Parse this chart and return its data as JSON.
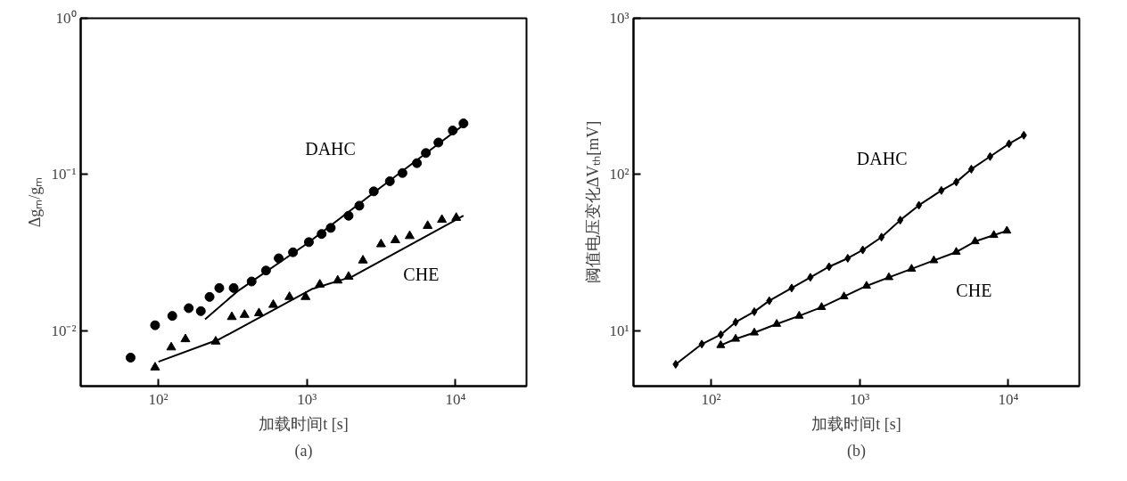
{
  "chart_data": [
    {
      "type": "scatter",
      "log": "xy",
      "xlabel": "加载时间t [s]",
      "ylabel": "Δgₘ/gₘ",
      "annotations": [
        "(a)"
      ],
      "grid": false,
      "xlim": [
        30,
        30000
      ],
      "ylim": [
        0.0044,
        1
      ],
      "xticks": [
        {
          "value": 100,
          "label": "10²"
        },
        {
          "value": 1000,
          "label": "10³"
        },
        {
          "value": 10000,
          "label": "10⁴"
        }
      ],
      "yticks": [
        {
          "value": 0.01,
          "label": "10⁻²"
        },
        {
          "value": 0.1,
          "label": "10⁻¹"
        },
        {
          "value": 1,
          "label": "10⁰"
        }
      ],
      "series": [
        {
          "name": "DAHC",
          "color": "#000000",
          "marker": "circle",
          "x": [
            65,
            95,
            124,
            160,
            193,
            221,
            257,
            321,
            424,
            530,
            645,
            805,
            1030,
            1255,
            1445,
            1905,
            2250,
            2815,
            3610,
            4390,
            5490,
            6310,
            7660,
            9570,
            11300
          ],
          "values": [
            0.0067,
            0.0108,
            0.0124,
            0.0139,
            0.0133,
            0.0164,
            0.0187,
            0.0187,
            0.0206,
            0.0242,
            0.029,
            0.0317,
            0.0368,
            0.0415,
            0.0454,
            0.0543,
            0.063,
            0.0778,
            0.0904,
            0.102,
            0.118,
            0.137,
            0.16,
            0.191,
            0.212
          ]
        },
        {
          "name": "CHE",
          "color": "#000000",
          "marker": "triangle",
          "x": [
            95,
            122,
            152,
            243,
            312,
            380,
            475,
            593,
            762,
            978,
            1220,
            1610,
            1905,
            2380,
            3150,
            3930,
            4910,
            6490,
            8090,
            10100
          ],
          "values": [
            0.0058,
            0.0078,
            0.0088,
            0.0085,
            0.0122,
            0.0126,
            0.0129,
            0.0146,
            0.0164,
            0.0164,
            0.0197,
            0.0209,
            0.0221,
            0.0281,
            0.0357,
            0.0379,
            0.0403,
            0.0468,
            0.0512,
            0.0527
          ]
        },
        {
          "type": "line",
          "color": "#000000",
          "line_style": "solid",
          "x": [
            206,
            340,
            1000,
            3000,
            11900
          ],
          "values": [
            0.0118,
            0.0178,
            0.036,
            0.08,
            0.215
          ]
        },
        {
          "type": "line",
          "color": "#000000",
          "line_style": "solid",
          "x": [
            100,
            258,
            1090,
            2010,
            11300
          ],
          "values": [
            0.0063,
            0.0088,
            0.0185,
            0.0221,
            0.0543
          ]
        }
      ]
    },
    {
      "type": "line",
      "log": "xy",
      "xlabel": "加载时间t [s]",
      "ylabel": "阈值电压变化ΔVₜₕ[mV]",
      "annotations": [
        "(b)"
      ],
      "grid": false,
      "line_style": "solid",
      "xlim": [
        30,
        30000
      ],
      "ylim": [
        4.4,
        1000
      ],
      "xticks": [
        {
          "value": 100,
          "label": "10²"
        },
        {
          "value": 1000,
          "label": "10³"
        },
        {
          "value": 10000,
          "label": "10⁴"
        }
      ],
      "yticks": [
        {
          "value": 10,
          "label": "10¹"
        },
        {
          "value": 100,
          "label": "10²"
        },
        {
          "value": 1000,
          "label": "10³"
        }
      ],
      "series": [
        {
          "name": "DAHC",
          "color": "#000000",
          "marker": "diamond",
          "x": [
            57.7,
            86.5,
            116,
            146,
            195,
            246,
            348,
            465,
            621,
            830,
            1047,
            1400,
            1872,
            2500,
            3540,
            4460,
            5630,
            7530,
            10100,
            12700
          ],
          "values": [
            6.07,
            8.18,
            9.4,
            11.3,
            13.2,
            15.5,
            18.7,
            21.9,
            25.6,
            29,
            32.8,
            39.6,
            50.9,
            63.4,
            78.9,
            89.3,
            108,
            130,
            157,
            178
          ]
        },
        {
          "name": "CHE",
          "color": "#000000",
          "marker": "triangle",
          "x": [
            116,
            146,
            195,
            276,
            391,
            553,
            783,
            1110,
            1570,
            2230,
            3150,
            4460,
            5970,
            7980,
            9770
          ],
          "values": [
            8.04,
            8.83,
            9.68,
            11.0,
            12.4,
            14.1,
            16.5,
            19.3,
            21.9,
            24.8,
            28.1,
            31.8,
            37.2,
            40.8,
            43.5
          ]
        }
      ]
    }
  ]
}
